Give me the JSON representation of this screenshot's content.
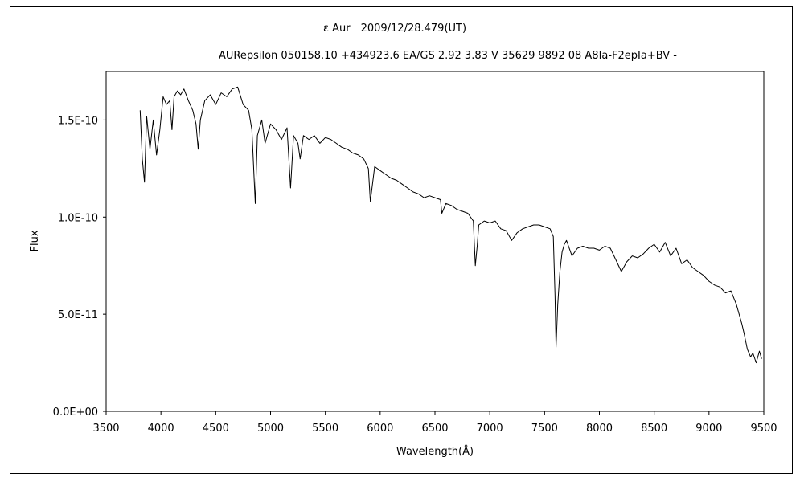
{
  "chart_data": {
    "type": "line",
    "title": "ε Aur　2009/12/28.479(UT)",
    "subtitle": "AURepsilon 050158.10 +434923.6 EA/GS 2.92 3.83 V 35629 9892 08 A8Ia-F2epIa+BV -",
    "xlabel": "Wavelength(Å)",
    "ylabel": "Flux",
    "xlim": [
      3500,
      9500
    ],
    "ylim": [
      0,
      1.75e-10
    ],
    "x_ticks": [
      3500,
      4000,
      4500,
      5000,
      5500,
      6000,
      6500,
      7000,
      7500,
      8000,
      8500,
      9000,
      9500
    ],
    "x_tick_labels": [
      "3500",
      "4000",
      "4500",
      "5000",
      "5500",
      "6000",
      "6500",
      "7000",
      "7500",
      "8000",
      "8500",
      "9000",
      "9500"
    ],
    "y_ticks": [
      0,
      5e-11,
      1e-10,
      1.5e-10
    ],
    "y_tick_labels": [
      "0.0E+00",
      "5.0E-11",
      "1.0E-10",
      "1.5E-10"
    ],
    "grid": false,
    "legend": "none",
    "line_color": "#000000",
    "series": [
      {
        "x": [
          3810,
          3830,
          3850,
          3870,
          3900,
          3930,
          3960,
          3990,
          4020,
          4050,
          4080,
          4101,
          4120,
          4150,
          4180,
          4210,
          4250,
          4290,
          4320,
          4340,
          4360,
          4400,
          4450,
          4500,
          4550,
          4600,
          4650,
          4700,
          4750,
          4800,
          4830,
          4861,
          4880,
          4920,
          4950,
          5000,
          5050,
          5100,
          5150,
          5183,
          5210,
          5250,
          5270,
          5300,
          5350,
          5400,
          5450,
          5500,
          5550,
          5600,
          5650,
          5700,
          5750,
          5800,
          5850,
          5893,
          5910,
          5950,
          6000,
          6050,
          6100,
          6150,
          6200,
          6250,
          6300,
          6350,
          6400,
          6450,
          6500,
          6550,
          6563,
          6600,
          6650,
          6700,
          6750,
          6800,
          6850,
          6868,
          6885,
          6900,
          6950,
          7000,
          7050,
          7100,
          7150,
          7200,
          7250,
          7300,
          7350,
          7400,
          7450,
          7500,
          7550,
          7580,
          7595,
          7605,
          7620,
          7640,
          7660,
          7680,
          7700,
          7750,
          7800,
          7850,
          7900,
          7950,
          8000,
          8050,
          8100,
          8150,
          8200,
          8250,
          8300,
          8350,
          8400,
          8450,
          8500,
          8550,
          8600,
          8650,
          8700,
          8750,
          8800,
          8850,
          8900,
          8950,
          9000,
          9050,
          9100,
          9150,
          9200,
          9250,
          9300,
          9320,
          9350,
          9380,
          9400,
          9430,
          9460,
          9480
        ],
        "y": [
          1.55e-10,
          1.3e-10,
          1.18e-10,
          1.52e-10,
          1.35e-10,
          1.5e-10,
          1.32e-10,
          1.45e-10,
          1.62e-10,
          1.58e-10,
          1.6e-10,
          1.45e-10,
          1.62e-10,
          1.65e-10,
          1.63e-10,
          1.66e-10,
          1.6e-10,
          1.55e-10,
          1.48e-10,
          1.35e-10,
          1.5e-10,
          1.6e-10,
          1.63e-10,
          1.58e-10,
          1.64e-10,
          1.62e-10,
          1.66e-10,
          1.67e-10,
          1.58e-10,
          1.55e-10,
          1.45e-10,
          1.07e-10,
          1.42e-10,
          1.5e-10,
          1.38e-10,
          1.48e-10,
          1.45e-10,
          1.4e-10,
          1.46e-10,
          1.15e-10,
          1.42e-10,
          1.38e-10,
          1.3e-10,
          1.42e-10,
          1.4e-10,
          1.42e-10,
          1.38e-10,
          1.41e-10,
          1.4e-10,
          1.38e-10,
          1.36e-10,
          1.35e-10,
          1.33e-10,
          1.32e-10,
          1.3e-10,
          1.25e-10,
          1.08e-10,
          1.26e-10,
          1.24e-10,
          1.22e-10,
          1.2e-10,
          1.19e-10,
          1.17e-10,
          1.15e-10,
          1.13e-10,
          1.12e-10,
          1.1e-10,
          1.11e-10,
          1.1e-10,
          1.09e-10,
          1.02e-10,
          1.07e-10,
          1.06e-10,
          1.04e-10,
          1.03e-10,
          1.02e-10,
          9.8e-11,
          7.5e-11,
          8.5e-11,
          9.6e-11,
          9.8e-11,
          9.7e-11,
          9.8e-11,
          9.4e-11,
          9.3e-11,
          8.8e-11,
          9.2e-11,
          9.4e-11,
          9.5e-11,
          9.6e-11,
          9.6e-11,
          9.5e-11,
          9.4e-11,
          9e-11,
          6e-11,
          3.3e-11,
          5.5e-11,
          7.2e-11,
          8.2e-11,
          8.6e-11,
          8.8e-11,
          8e-11,
          8.4e-11,
          8.5e-11,
          8.4e-11,
          8.4e-11,
          8.3e-11,
          8.5e-11,
          8.4e-11,
          7.8e-11,
          7.2e-11,
          7.7e-11,
          8e-11,
          7.9e-11,
          8.1e-11,
          8.4e-11,
          8.6e-11,
          8.2e-11,
          8.7e-11,
          8e-11,
          8.4e-11,
          7.6e-11,
          7.8e-11,
          7.4e-11,
          7.2e-11,
          7e-11,
          6.7e-11,
          6.5e-11,
          6.4e-11,
          6.1e-11,
          6.2e-11,
          5.5e-11,
          4.5e-11,
          4e-11,
          3.2e-11,
          2.8e-11,
          3e-11,
          2.5e-11,
          3.1e-11,
          2.7e-11
        ]
      }
    ]
  }
}
